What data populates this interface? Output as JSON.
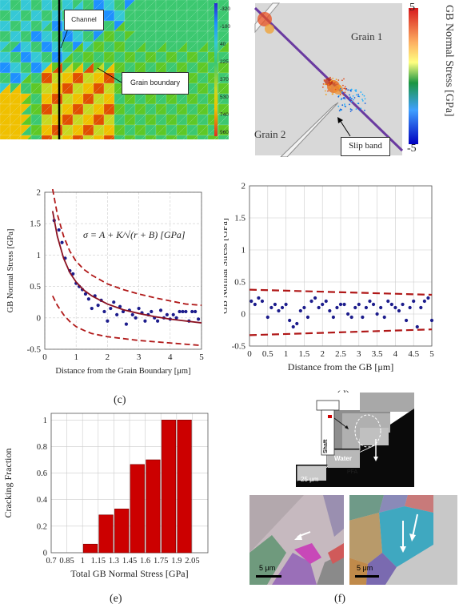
{
  "figure": {
    "panel_a": {
      "colorbar_ticks": [
        "-320",
        "-100",
        "40",
        "225",
        "370",
        "530",
        "740",
        "960"
      ],
      "callouts": {
        "channel": "Channel",
        "grain_boundary": "Grain boundary"
      }
    },
    "panel_b": {
      "colorbar_title": "GB Normal Stress [GPa]",
      "colorbar_max": "5",
      "colorbar_min": "-5",
      "labels": {
        "grain1": "Grain 1",
        "grain2": "Grain 2",
        "slip_band": "Slip band"
      }
    },
    "panel_c": {
      "caption": "(c)",
      "equation": "σ = A + K/√(r + B) [GPa]"
    },
    "panel_d": {
      "caption": "(d)"
    },
    "panel_e": {
      "caption": "(e)"
    },
    "panel_f": {
      "caption": "(f)",
      "labels": {
        "shaft": "Shaft",
        "pfa": "PFA",
        "water": "Water"
      },
      "scale_bars": [
        "25 μm",
        "5 μm",
        "5 μm"
      ]
    }
  },
  "chart_data": [
    {
      "type": "scatter",
      "panel": "c",
      "xlabel": "Distance from the Grain Boundary [μm]",
      "ylabel": "GB Normal Stress [GPa]",
      "xlim": [
        0,
        5
      ],
      "ylim": [
        -0.5,
        2
      ],
      "xticks": [
        "0",
        "1",
        "2",
        "3",
        "4",
        "5"
      ],
      "yticks": [
        "-0.5",
        "0",
        "0.5",
        "1",
        "1.5",
        "2"
      ],
      "grid": true,
      "series": [
        {
          "role": "points",
          "x": [
            0.3,
            0.45,
            0.55,
            0.65,
            0.8,
            0.9,
            1.0,
            1.1,
            1.2,
            1.3,
            1.4,
            1.5,
            1.6,
            1.7,
            1.8,
            1.9,
            2.0,
            2.1,
            2.2,
            2.3,
            2.4,
            2.5,
            2.6,
            2.7,
            2.8,
            2.9,
            3.0,
            3.1,
            3.2,
            3.3,
            3.4,
            3.5,
            3.6,
            3.7,
            3.8,
            3.9,
            4.0,
            4.1,
            4.2,
            4.3,
            4.4,
            4.5,
            4.6,
            4.7,
            4.8,
            4.9
          ],
          "y": [
            1.55,
            1.4,
            1.2,
            0.95,
            0.75,
            0.7,
            0.55,
            0.5,
            0.45,
            0.38,
            0.3,
            0.15,
            0.35,
            0.2,
            0.28,
            0.1,
            -0.05,
            0.15,
            0.25,
            0.05,
            0.18,
            0.1,
            -0.1,
            0.12,
            0.05,
            0.0,
            0.15,
            0.08,
            -0.05,
            0.05,
            0.1,
            0.0,
            -0.05,
            0.12,
            0.0,
            0.05,
            -0.02,
            0.05,
            0.0,
            0.1,
            0.1,
            0.1,
            -0.05,
            0.1,
            0.1,
            -0.02
          ]
        },
        {
          "role": "fit",
          "x": [
            0.25,
            0.4,
            0.6,
            0.8,
            1.0,
            1.25,
            1.5,
            2.0,
            2.5,
            3.0,
            3.5,
            4.0,
            4.5,
            5.0
          ],
          "y": [
            1.7,
            1.3,
            0.95,
            0.72,
            0.57,
            0.44,
            0.35,
            0.22,
            0.13,
            0.07,
            0.02,
            -0.02,
            -0.05,
            -0.08
          ]
        },
        {
          "role": "upper_bound",
          "x": [
            0.25,
            0.4,
            0.6,
            0.8,
            1.0,
            1.25,
            1.5,
            2.0,
            2.5,
            3.0,
            3.5,
            4.0,
            4.5,
            5.0
          ],
          "y": [
            2.05,
            1.65,
            1.3,
            1.06,
            0.9,
            0.77,
            0.68,
            0.54,
            0.45,
            0.38,
            0.32,
            0.27,
            0.22,
            0.2
          ]
        },
        {
          "role": "lower_bound",
          "x": [
            0.25,
            0.4,
            0.6,
            0.8,
            1.0,
            1.25,
            1.5,
            2.0,
            2.5,
            3.0,
            3.5,
            4.0,
            4.5,
            5.0
          ],
          "y": [
            0.35,
            0.2,
            0.05,
            -0.06,
            -0.14,
            -0.2,
            -0.25,
            -0.3,
            -0.33,
            -0.36,
            -0.38,
            -0.4,
            -0.42,
            -0.44
          ]
        }
      ]
    },
    {
      "type": "scatter",
      "panel": "d",
      "xlabel": "Distance from the GB [μm]",
      "ylabel": "GB Normal Stress [GPa]",
      "xlim": [
        0,
        5
      ],
      "ylim": [
        -0.5,
        2
      ],
      "xticks": [
        "0",
        "0.5",
        "1",
        "1.5",
        "2",
        "2.5",
        "3",
        "3.5",
        "4",
        "4.5",
        "5"
      ],
      "yticks": [
        "-0.5",
        "0",
        "0.5",
        "1",
        "1.5",
        "2"
      ],
      "grid": true,
      "series": [
        {
          "role": "points",
          "x": [
            0.05,
            0.15,
            0.25,
            0.35,
            0.5,
            0.6,
            0.7,
            0.8,
            0.9,
            1.0,
            1.1,
            1.2,
            1.3,
            1.4,
            1.5,
            1.6,
            1.7,
            1.8,
            1.9,
            2.0,
            2.1,
            2.2,
            2.3,
            2.4,
            2.5,
            2.6,
            2.7,
            2.8,
            2.9,
            3.0,
            3.1,
            3.2,
            3.3,
            3.4,
            3.5,
            3.6,
            3.7,
            3.8,
            3.9,
            4.0,
            4.1,
            4.2,
            4.3,
            4.4,
            4.5,
            4.6,
            4.7,
            4.8,
            4.9,
            5.0
          ],
          "y": [
            0.2,
            0.15,
            0.25,
            0.2,
            -0.05,
            0.1,
            0.15,
            0.05,
            0.1,
            0.15,
            -0.1,
            -0.2,
            -0.15,
            0.05,
            0.1,
            -0.05,
            0.2,
            0.25,
            0.1,
            0.15,
            0.2,
            0.05,
            -0.05,
            0.1,
            0.15,
            0.15,
            0.0,
            -0.05,
            0.1,
            0.15,
            -0.05,
            0.1,
            0.2,
            0.15,
            0.0,
            0.1,
            -0.05,
            0.2,
            0.15,
            0.1,
            0.05,
            0.15,
            -0.1,
            0.1,
            0.2,
            -0.2,
            0.1,
            0.2,
            0.25,
            -0.1
          ]
        },
        {
          "role": "upper_bound",
          "x": [
            0,
            5
          ],
          "y": [
            0.38,
            0.3
          ]
        },
        {
          "role": "lower_bound",
          "x": [
            0,
            5
          ],
          "y": [
            -0.33,
            -0.24
          ]
        }
      ]
    },
    {
      "type": "bar",
      "panel": "e",
      "xlabel": "Total GB Normal Stress [GPa]",
      "ylabel": "Cracking Fraction",
      "xlim": [
        0.7,
        2.2
      ],
      "ylim": [
        0,
        1.05
      ],
      "xticks": [
        "0.7",
        "0.85",
        "1",
        "1.15",
        "1.3",
        "1.45",
        "1.6",
        "1.75",
        "1.9",
        "2.05"
      ],
      "yticks": [
        "0",
        "0.2",
        "0.4",
        "0.6",
        "0.8",
        "1"
      ],
      "grid": true,
      "bar_color": "#cc0000",
      "bar_centers": [
        1.075,
        1.225,
        1.375,
        1.525,
        1.675,
        1.825,
        1.975
      ],
      "bar_width": 0.135,
      "values": [
        0.065,
        0.285,
        0.33,
        0.665,
        0.7,
        1.0,
        1.0
      ]
    }
  ]
}
